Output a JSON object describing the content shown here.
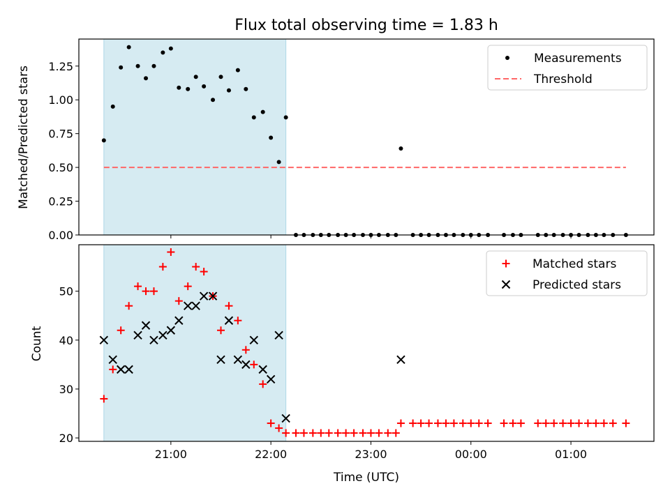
{
  "chart_data": [
    {
      "type": "scatter",
      "title": "Flux total observing time = 1.83 h",
      "xlabel": "",
      "ylabel": "Matched/Predicted stars",
      "ylim": [
        0,
        1.45
      ],
      "yticks": [
        "0.00",
        "0.25",
        "0.50",
        "0.75",
        "1.00",
        "1.25"
      ],
      "grid": false,
      "legend": "top-right",
      "highlight_span": {
        "x_start": 20.33,
        "x_end": 22.15,
        "color": "#add8e6"
      },
      "series": [
        {
          "name": "Measurements",
          "marker": "dot",
          "color": "#000000",
          "x": [
            20.33,
            20.42,
            20.5,
            20.58,
            20.67,
            20.75,
            20.83,
            20.92,
            21.0,
            21.08,
            21.17,
            21.25,
            21.33,
            21.42,
            21.5,
            21.58,
            21.67,
            21.75,
            21.83,
            21.92,
            22.0,
            22.08,
            22.15,
            22.25,
            22.33,
            22.42,
            22.5,
            22.58,
            22.67,
            22.75,
            22.83,
            22.92,
            23.0,
            23.08,
            23.17,
            23.25,
            23.3,
            23.42,
            23.5,
            23.58,
            23.67,
            23.75,
            23.83,
            23.92,
            24.0,
            24.08,
            24.17,
            24.33,
            24.42,
            24.5,
            24.67,
            24.75,
            24.83,
            24.92,
            25.0,
            25.08,
            25.17,
            25.25,
            25.33,
            25.42,
            25.55
          ],
          "y": [
            0.7,
            0.95,
            1.24,
            1.39,
            1.25,
            1.16,
            1.25,
            1.35,
            1.38,
            1.09,
            1.08,
            1.17,
            1.1,
            1.0,
            1.17,
            1.07,
            1.22,
            1.08,
            0.87,
            0.91,
            0.72,
            0.54,
            0.87,
            0,
            0,
            0,
            0,
            0,
            0,
            0,
            0,
            0,
            0,
            0,
            0,
            0,
            0.64,
            0,
            0,
            0,
            0,
            0,
            0,
            0,
            0,
            0,
            0,
            0,
            0,
            0,
            0,
            0,
            0,
            0,
            0,
            0,
            0,
            0,
            0,
            0,
            0
          ]
        },
        {
          "name": "Threshold",
          "type": "line",
          "style": "dashed",
          "color": "#ff6666",
          "x": [
            20.33,
            25.55
          ],
          "y": [
            0.5,
            0.5
          ]
        }
      ]
    },
    {
      "type": "scatter",
      "title": "",
      "xlabel": "Time (UTC)",
      "ylabel": "Count",
      "ylim": [
        19.3,
        59.5
      ],
      "yticks": [
        "20",
        "30",
        "40",
        "50"
      ],
      "xticks": [
        {
          "x": 21,
          "label": "21:00"
        },
        {
          "x": 22,
          "label": "22:00"
        },
        {
          "x": 23,
          "label": "23:00"
        },
        {
          "x": 24,
          "label": "00:00"
        },
        {
          "x": 25,
          "label": "01:00"
        }
      ],
      "grid": false,
      "legend": "top-right",
      "highlight_span": {
        "x_start": 20.33,
        "x_end": 22.15,
        "color": "#add8e6"
      },
      "series": [
        {
          "name": "Matched stars",
          "marker": "plus",
          "color": "#ff0000",
          "x": [
            20.33,
            20.42,
            20.5,
            20.58,
            20.67,
            20.75,
            20.83,
            20.92,
            21.0,
            21.08,
            21.17,
            21.25,
            21.33,
            21.42,
            21.5,
            21.58,
            21.67,
            21.75,
            21.83,
            21.92,
            22.0,
            22.08,
            22.15,
            22.25,
            22.33,
            22.42,
            22.5,
            22.58,
            22.67,
            22.75,
            22.83,
            22.92,
            23.0,
            23.08,
            23.17,
            23.25,
            23.3,
            23.42,
            23.5,
            23.58,
            23.67,
            23.75,
            23.83,
            23.92,
            24.0,
            24.08,
            24.17,
            24.33,
            24.42,
            24.5,
            24.67,
            24.75,
            24.83,
            24.92,
            25.0,
            25.08,
            25.17,
            25.25,
            25.33,
            25.42,
            25.55
          ],
          "y": [
            28,
            34,
            42,
            47,
            51,
            50,
            50,
            55,
            58,
            48,
            51,
            55,
            54,
            49,
            42,
            47,
            44,
            38,
            35,
            31,
            23,
            22,
            21,
            21,
            21,
            21,
            21,
            21,
            21,
            21,
            21,
            21,
            21,
            21,
            21,
            21,
            23,
            23,
            23,
            23,
            23,
            23,
            23,
            23,
            23,
            23,
            23,
            23,
            23,
            23,
            23,
            23,
            23,
            23,
            23,
            23,
            23,
            23,
            23,
            23,
            23
          ]
        },
        {
          "name": "Predicted stars",
          "marker": "x",
          "color": "#000000",
          "x": [
            20.33,
            20.42,
            20.5,
            20.58,
            20.67,
            20.75,
            20.83,
            20.92,
            21.0,
            21.08,
            21.17,
            21.25,
            21.33,
            21.42,
            21.5,
            21.58,
            21.67,
            21.75,
            21.83,
            21.92,
            22.0,
            22.08,
            22.15,
            23.3
          ],
          "y": [
            40,
            36,
            34,
            34,
            41,
            43,
            40,
            41,
            42,
            44,
            47,
            47,
            49,
            49,
            36,
            44,
            36,
            35,
            40,
            34,
            32,
            41,
            24,
            36
          ]
        }
      ]
    }
  ]
}
